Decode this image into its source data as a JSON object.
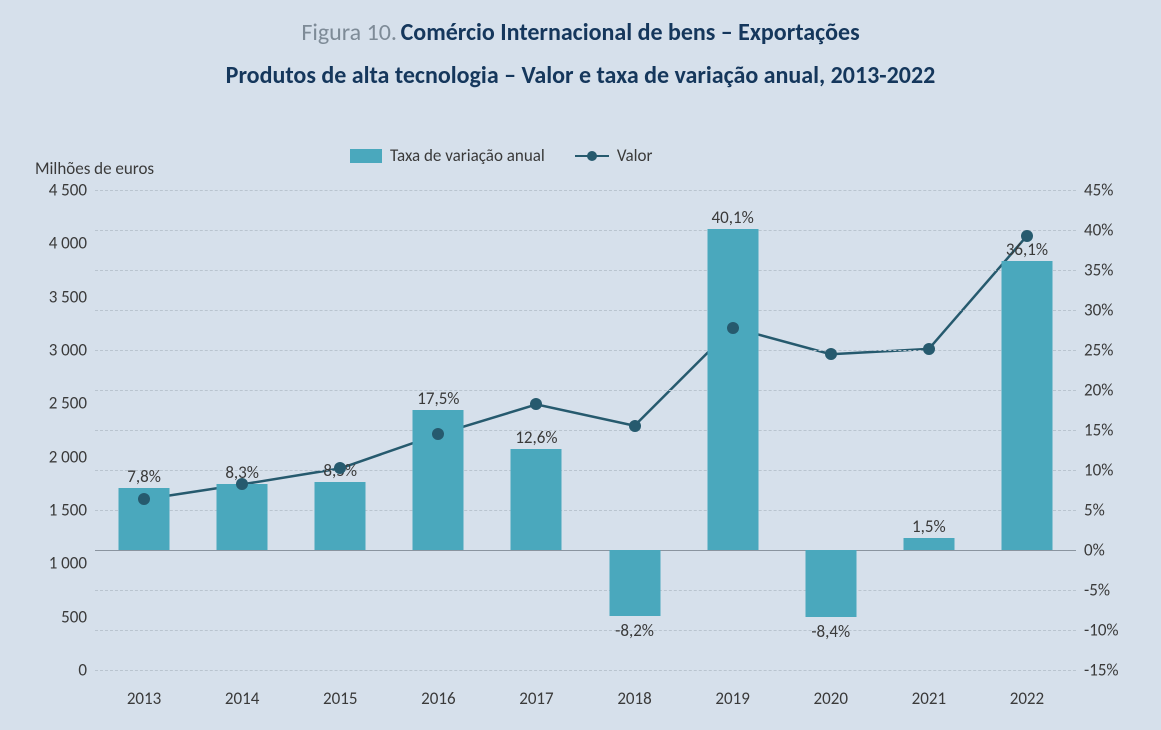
{
  "chart": {
    "type": "bar+line",
    "figure_label": "Figura 10.",
    "title": "Comércio Internacional de bens – Exportações",
    "subtitle": "Produtos de alta tecnologia – Valor e taxa de variação anual, 2013-2022",
    "axis_left_title": "Milhões de euros",
    "legend": {
      "bar": "Taxa de variação anual",
      "line": "Valor"
    },
    "categories": [
      "2013",
      "2014",
      "2015",
      "2016",
      "2017",
      "2018",
      "2019",
      "2020",
      "2021",
      "2022"
    ],
    "bar_values_pct": [
      7.8,
      8.3,
      8.5,
      17.5,
      12.6,
      -8.2,
      40.1,
      -8.4,
      1.5,
      36.1
    ],
    "bar_labels": [
      "7,8%",
      "8,3%",
      "8,5%",
      "17,5%",
      "12,6%",
      "-8,2%",
      "40,1%",
      "-8,4%",
      "1,5%",
      "36,1%"
    ],
    "line_values": [
      1600,
      1740,
      1890,
      2210,
      2490,
      2290,
      3210,
      2960,
      3010,
      4070
    ],
    "y_left": {
      "min": 0,
      "max": 4500,
      "step": 500,
      "ticks": [
        "0",
        " 500",
        "1 000",
        "1 500",
        "2 000",
        "2 500",
        "3 000",
        "3 500",
        "4 000",
        "4 500"
      ]
    },
    "y_right": {
      "min": -15,
      "max": 45,
      "step": 5,
      "ticks": [
        "-15%",
        "-10%",
        "-5%",
        "0%",
        "5%",
        "10%",
        "15%",
        "20%",
        "25%",
        "30%",
        "35%",
        "40%",
        "45%"
      ]
    },
    "colors": {
      "background": "#d6e0eb",
      "title_gray": "#7e8b97",
      "title_dark": "#15375c",
      "text": "#3a3a3a",
      "bar_fill": "#4aa8bd",
      "line_stroke": "#265a6e",
      "marker_fill": "#265a6e",
      "grid": "#b9c4cf",
      "zero_line": "#8a949f"
    },
    "fonts": {
      "title_size": 24,
      "subtitle_size": 24,
      "axis_label_size": 17,
      "tick_size": 17,
      "legend_size": 17,
      "data_label_size": 17
    },
    "style": {
      "bar_width_pct": 5.2,
      "line_width": 2.5,
      "marker_radius": 6,
      "grid_dash": "3,4"
    }
  }
}
